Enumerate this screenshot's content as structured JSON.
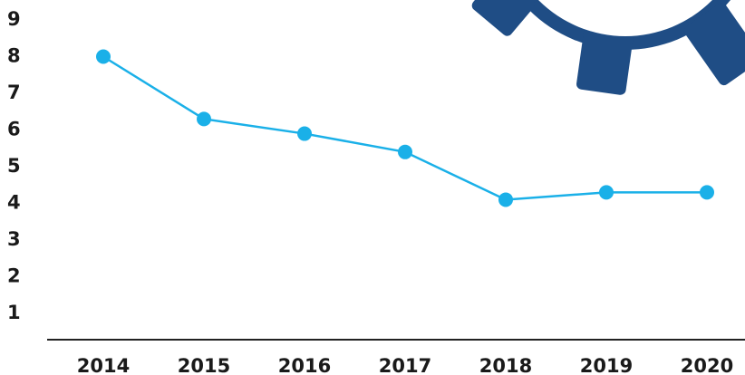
{
  "chart_data": {
    "type": "line",
    "categories": [
      "2014",
      "2015",
      "2016",
      "2017",
      "2018",
      "2019",
      "2020"
    ],
    "series": [
      {
        "name": null,
        "color": "#1ab0e8",
        "values": [
          8.0,
          6.3,
          5.9,
          5.4,
          4.1,
          4.3,
          4.3
        ]
      }
    ],
    "ylim": [
      0,
      10
    ],
    "yticks": [
      1,
      2,
      3,
      4,
      5,
      6,
      7,
      8,
      9
    ],
    "grid": false
  }
}
